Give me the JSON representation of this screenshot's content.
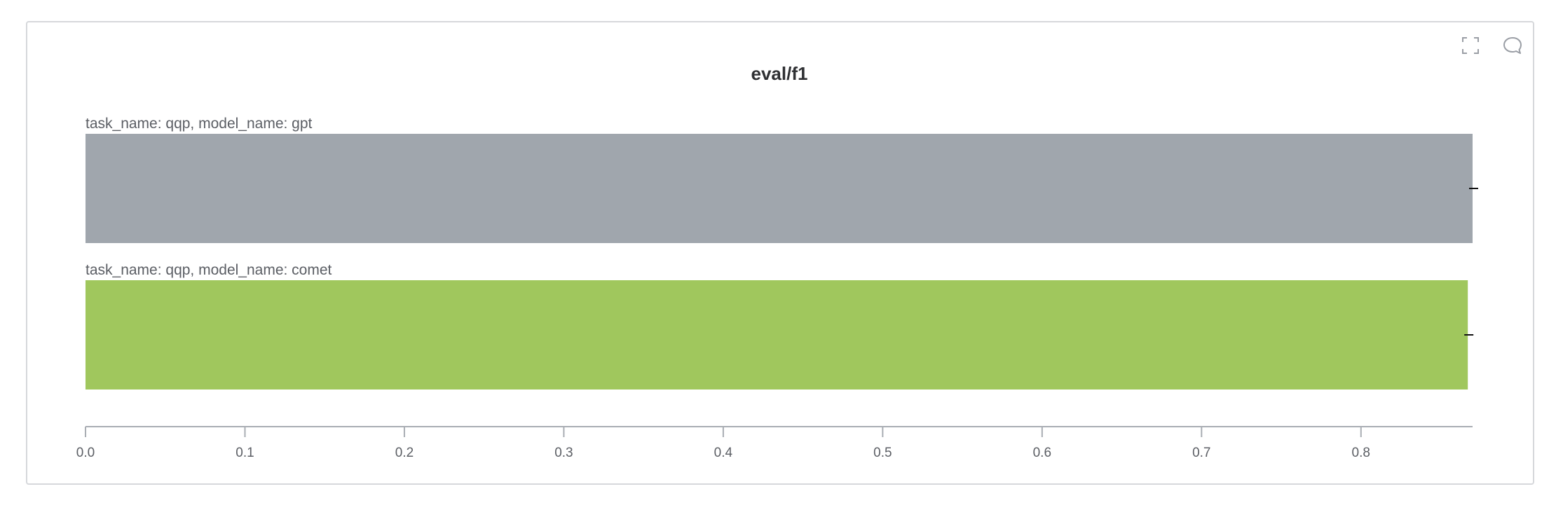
{
  "panel": {
    "actions": [
      {
        "name": "fullscreen-icon"
      },
      {
        "name": "comment-icon"
      }
    ]
  },
  "chart_data": {
    "type": "bar",
    "orientation": "horizontal",
    "title": "eval/f1",
    "xlabel": "",
    "ylabel": "",
    "xlim": [
      0,
      0.87
    ],
    "ticks": [
      "0.0",
      "0.1",
      "0.2",
      "0.3",
      "0.4",
      "0.5",
      "0.6",
      "0.7",
      "0.8"
    ],
    "tick_values": [
      0,
      0.1,
      0.2,
      0.3,
      0.4,
      0.5,
      0.6,
      0.7,
      0.8
    ],
    "categories": [
      "task_name: qqp, model_name: gpt",
      "task_name: qqp, model_name: comet"
    ],
    "values": [
      0.87,
      0.867
    ],
    "colors": [
      "#a0a6ad",
      "#a0c75d"
    ],
    "grid": false,
    "error_bars": true
  }
}
